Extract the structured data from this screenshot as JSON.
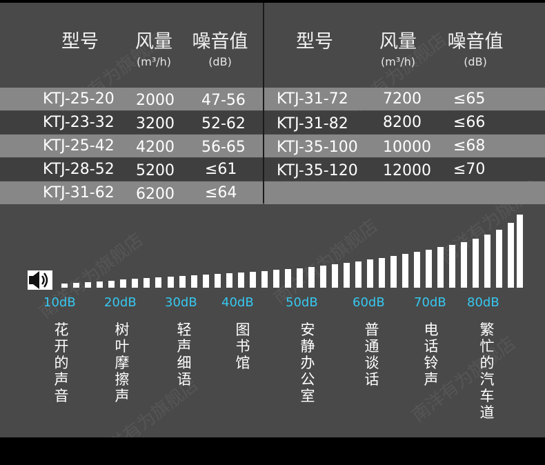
{
  "headers": {
    "model": "型号",
    "airflow": "风量",
    "airflow_unit": "(m³/h)",
    "noise": "噪音值",
    "noise_unit": "(dB)"
  },
  "left_table": [
    {
      "model": "KTJ-25-20",
      "airflow": "2000",
      "noise": "47-56"
    },
    {
      "model": "KTJ-23-32",
      "airflow": "3200",
      "noise": "52-62"
    },
    {
      "model": "KTJ-25-42",
      "airflow": "4200",
      "noise": "56-65"
    },
    {
      "model": "KTJ-28-52",
      "airflow": "5200",
      "noise": "≤61"
    },
    {
      "model": "KTJ-31-62",
      "airflow": "6200",
      "noise": "≤64"
    }
  ],
  "right_table": [
    {
      "model": "KTJ-31-72",
      "airflow": "7200",
      "noise": "≤65"
    },
    {
      "model": "KTJ-31-82",
      "airflow": "8200",
      "noise": "≤66"
    },
    {
      "model": "KTJ-35-100",
      "airflow": "10000",
      "noise": "≤68"
    },
    {
      "model": "KTJ-35-120",
      "airflow": "12000",
      "noise": "≤70"
    }
  ],
  "scale": {
    "icon": "speaker-icon",
    "labels": [
      "10dB",
      "20dB",
      "30dB",
      "40dB",
      "50dB",
      "60dB",
      "70dB",
      "80dB"
    ],
    "descriptions": [
      "花开的声音",
      "树叶摩擦声",
      "轻声细语",
      "图书馆",
      "安静办公室",
      "普通谈话",
      "电话铃声",
      "繁忙的汽车道"
    ]
  },
  "watermark": "南洋有为旗舰店",
  "colors": {
    "background": "#494949",
    "band_light": "#878787",
    "band_dark": "#3f3f3f",
    "db_label": "#36c8f0"
  }
}
